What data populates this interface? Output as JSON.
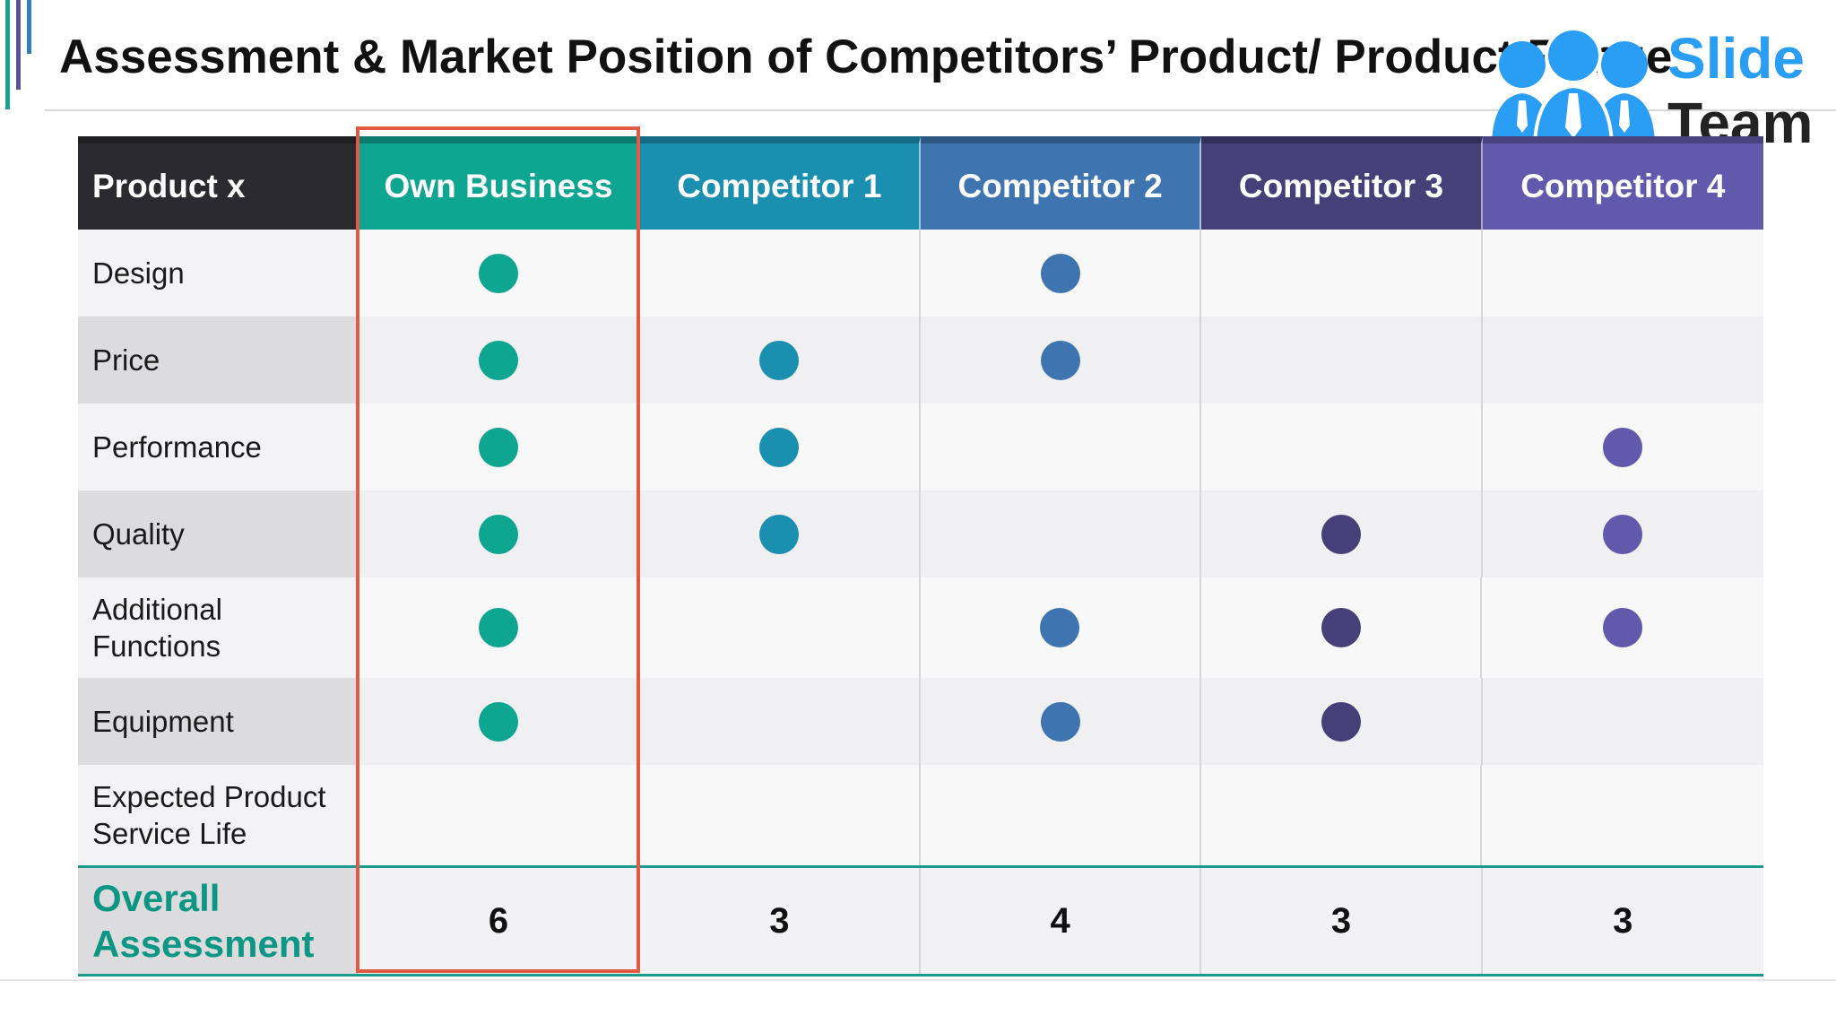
{
  "title": "Assessment & Market Position of Competitors’ Product/ Product Range",
  "logo": {
    "line1": "Slide",
    "line2": "Team"
  },
  "colors": {
    "own_business": "#0ea591",
    "competitor_1": "#1a8fb0",
    "competitor_2": "#3e74b0",
    "competitor_3": "#463f78",
    "competitor_4": "#6159ac",
    "header_first": "#2b2a2e",
    "highlight_border": "#e05a44",
    "overall_label": "#0d9684"
  },
  "table": {
    "columns": [
      "Product x",
      "Own Business",
      "Competitor 1",
      "Competitor 2",
      "Competitor 3",
      "Competitor 4"
    ],
    "rows": [
      {
        "label": "Design",
        "marks": [
          true,
          false,
          true,
          false,
          false
        ]
      },
      {
        "label": "Price",
        "marks": [
          true,
          true,
          true,
          false,
          false
        ]
      },
      {
        "label": "Performance",
        "marks": [
          true,
          true,
          false,
          false,
          true
        ]
      },
      {
        "label": "Quality",
        "marks": [
          true,
          true,
          false,
          true,
          true
        ]
      },
      {
        "label": "Additional Functions",
        "marks": [
          true,
          false,
          true,
          true,
          true
        ]
      },
      {
        "label": "Equipment",
        "marks": [
          true,
          false,
          true,
          true,
          false
        ]
      },
      {
        "label": "Expected Product Service Life",
        "marks": [
          false,
          false,
          false,
          false,
          false
        ]
      }
    ],
    "overall": {
      "label": "Overall Assessment",
      "scores": [
        "6",
        "3",
        "4",
        "3",
        "3"
      ]
    }
  }
}
